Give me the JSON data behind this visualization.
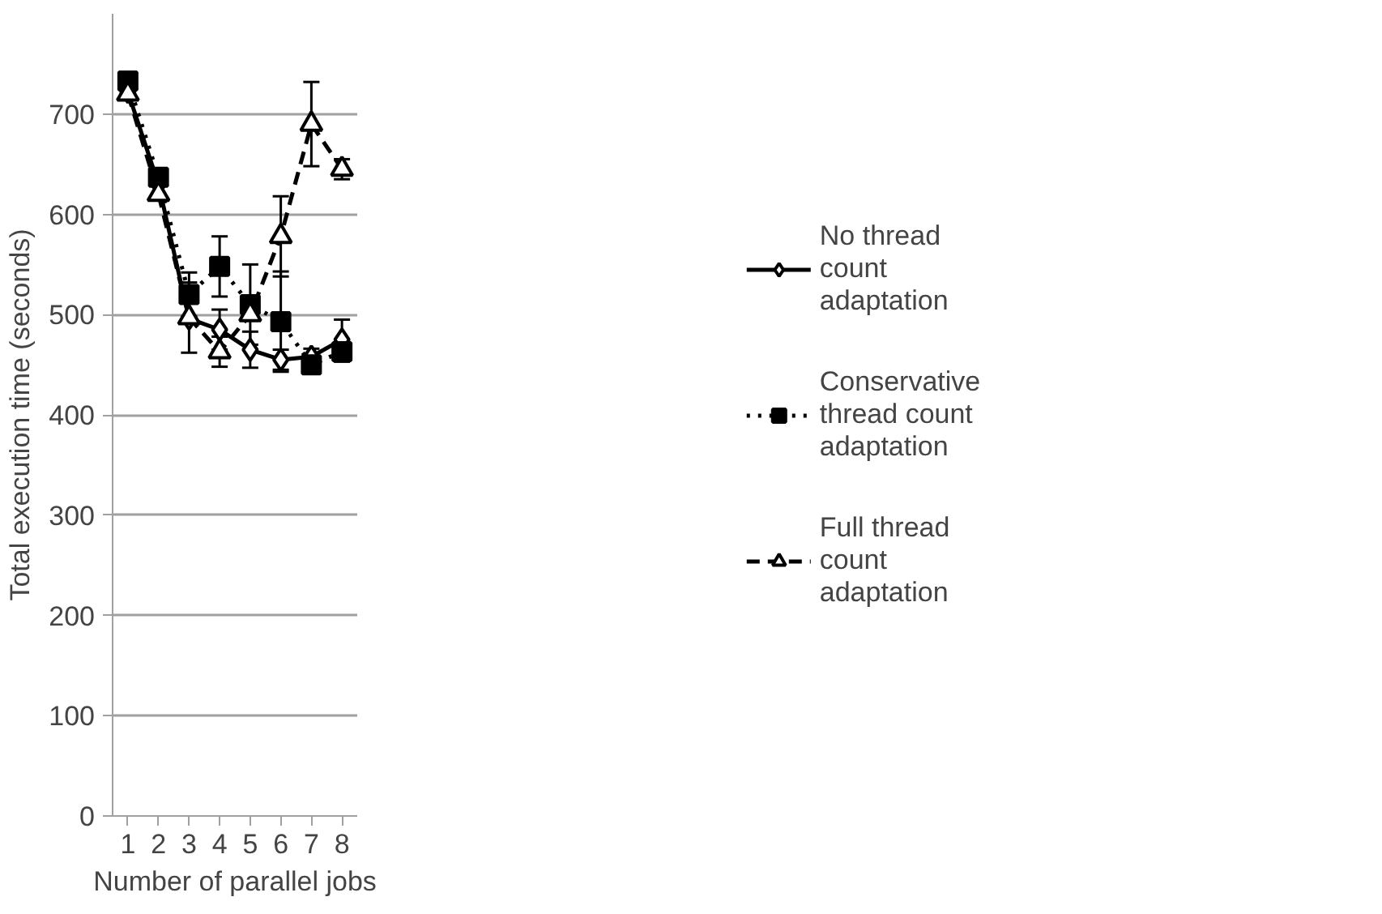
{
  "chart_data": {
    "type": "line",
    "xlabel": "Number of parallel jobs",
    "ylabel": "Total execution time (seconds)",
    "categories": [
      "1",
      "2",
      "3",
      "4",
      "5",
      "6",
      "7",
      "8"
    ],
    "ylim": [
      0,
      800
    ],
    "yticks": [
      0,
      100,
      200,
      300,
      400,
      500,
      600,
      700
    ],
    "grid": "y",
    "legend": "right",
    "series": [
      {
        "name": "No thread count adaptation",
        "color": "#000000",
        "marker": "diamond",
        "line_style": "solid",
        "values": [
          722,
          630,
          496,
          485,
          465,
          455,
          458,
          475
        ],
        "errors": [
          null,
          null,
          null,
          20,
          18,
          10,
          8,
          20
        ]
      },
      {
        "name": "Conservative thread count adaptation",
        "color": "#000000",
        "marker": "square",
        "line_style": "dotted",
        "values": [
          733,
          637,
          520,
          548,
          510,
          493,
          450,
          463
        ],
        "errors": [
          null,
          null,
          22,
          30,
          40,
          50,
          null,
          10
        ]
      },
      {
        "name": "Full thread count adaptation",
        "color": "#000000",
        "marker": "triangle",
        "line_style": "dashed",
        "values": [
          720,
          620,
          497,
          463,
          500,
          578,
          690,
          645
        ],
        "errors": [
          null,
          null,
          35,
          15,
          null,
          40,
          42,
          10
        ]
      }
    ]
  }
}
